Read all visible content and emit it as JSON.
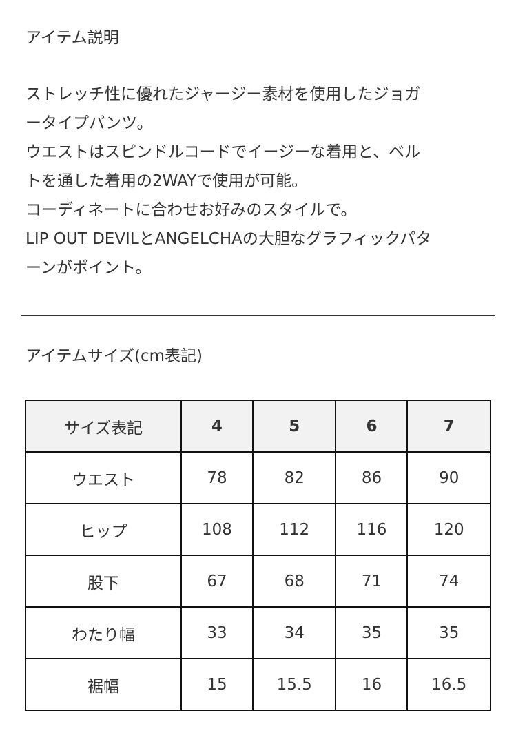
{
  "description_title": "アイテム説明",
  "description_lines": [
    "ストレッチ性に優れたジャージー素材を使用したジョガ",
    "ータイプパンツ。",
    "ウエストはスピンドルコードでイージーな着用と、ベル",
    "トを通した着用の2WAYで使用が可能。",
    "コーディネートに合わせお好みのスタイルで。",
    "LIP OUT DEVILとANGELCHAの大胆なグラフィックパタ",
    "ーンがポイント。"
  ],
  "size_title": "アイテムサイズ(cm表記)",
  "size_table": {
    "header": [
      "サイズ表記",
      "4",
      "5",
      "6",
      "7"
    ],
    "rows": [
      [
        "ウエスト",
        "78",
        "82",
        "86",
        "90"
      ],
      [
        "ヒップ",
        "108",
        "112",
        "116",
        "120"
      ],
      [
        "股下",
        "67",
        "68",
        "71",
        "74"
      ],
      [
        "わたり幅",
        "33",
        "34",
        "35",
        "35"
      ],
      [
        "裾幅",
        "15",
        "15.5",
        "16",
        "16.5"
      ]
    ]
  },
  "colors": {
    "text": "#333333",
    "header_bg": "#f2f2f2",
    "border": "#111111"
  }
}
